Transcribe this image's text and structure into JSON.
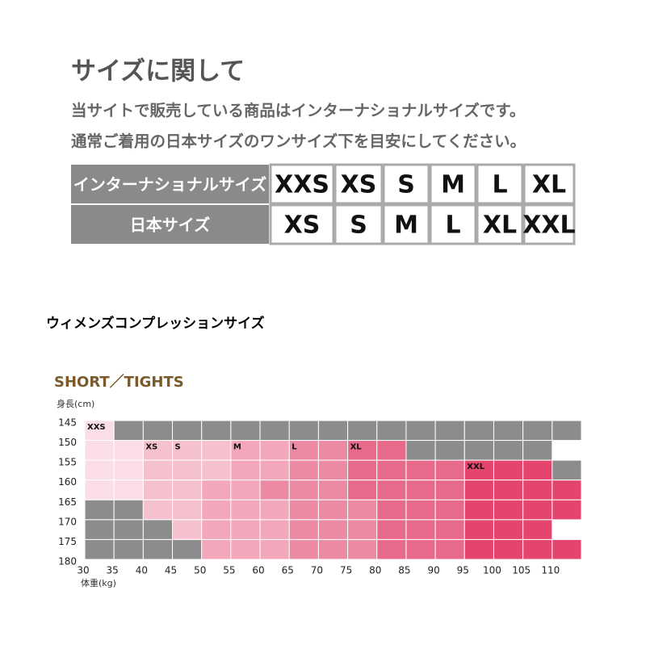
{
  "header": {
    "title": "サイズに関して",
    "lines": [
      "当サイトで販売している商品はインターナショナルサイズです。",
      "通常ご着用の日本サイズのワンサイズ下を目安にしてください。"
    ]
  },
  "table": {
    "rows": [
      [
        "インターナショナルサイズ",
        "XXS",
        "XS",
        "S",
        "M",
        "L",
        "XL"
      ],
      [
        "日本サイズ",
        "XS",
        "S",
        "M",
        "L",
        "XL",
        "XXL"
      ]
    ]
  },
  "section_title": "ウィメンズコンプレッションサイズ",
  "chart_data": {
    "type": "heatmap",
    "title": "SHORT／TIGHTS",
    "y_label": "身長(cm)",
    "x_label": "体重(kg)",
    "xlim": [
      30,
      115
    ],
    "ylim": [
      145,
      180
    ],
    "xticks": [
      30,
      35,
      40,
      45,
      50,
      55,
      60,
      65,
      70,
      75,
      80,
      85,
      90,
      95,
      100,
      105,
      110
    ],
    "yticks": [
      145,
      150,
      155,
      160,
      165,
      170,
      175,
      180
    ],
    "palette": {
      "g": "#8c8c8c",
      "1": "#fbdde5",
      "2": "#f6c1cf",
      "3": "#f2a7ba",
      "4": "#ec89a3",
      "5": "#e76a8b",
      "6": "#e4456c"
    },
    "cells": [
      "1gggggggggggggggg",
      "11222334455ggggg",
      "1122233445555666g",
      "11223344455556666",
      "gg223334445556666",
      "ggg2333444555666",
      "gggg3334445556666"
    ],
    "size_labels": [
      {
        "text": "XXS",
        "row": 0,
        "col": 0
      },
      {
        "text": "XS",
        "row": 1,
        "col": 2
      },
      {
        "text": "S",
        "row": 1,
        "col": 3
      },
      {
        "text": "M",
        "row": 1,
        "col": 5
      },
      {
        "text": "L",
        "row": 1,
        "col": 7
      },
      {
        "text": "XL",
        "row": 1,
        "col": 9
      },
      {
        "text": "XXL",
        "row": 2,
        "col": 13
      }
    ]
  }
}
